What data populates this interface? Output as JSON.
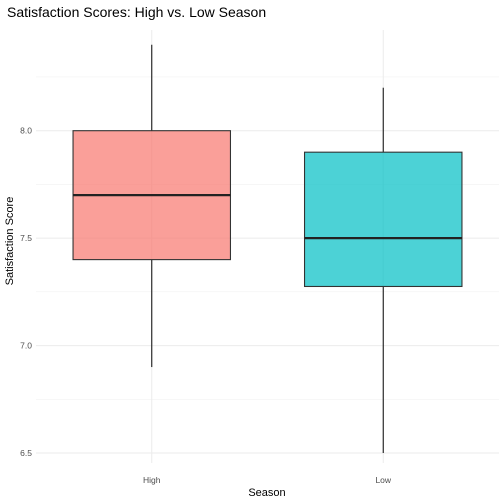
{
  "chart_data": {
    "type": "boxplot",
    "title": "Satisfaction Scores: High vs. Low Season",
    "xlabel": "Season",
    "ylabel": "Satisfaction Score",
    "categories": [
      "High",
      "Low"
    ],
    "ylim": [
      6.5,
      8.45
    ],
    "yticks": [
      6.5,
      7.0,
      7.5,
      8.0
    ],
    "ytick_labels": [
      "6.5",
      "7.0",
      "7.5",
      "8.0"
    ],
    "grid": true,
    "legend": "none",
    "boxes": [
      {
        "category": "High",
        "min": 6.9,
        "q1": 7.4,
        "median": 7.7,
        "q3": 8.0,
        "max": 8.4,
        "color": "#F8766D"
      },
      {
        "category": "Low",
        "min": 6.5,
        "q1": 7.275,
        "median": 7.5,
        "q3": 7.9,
        "max": 8.2,
        "color": "#00BFC4"
      }
    ]
  }
}
